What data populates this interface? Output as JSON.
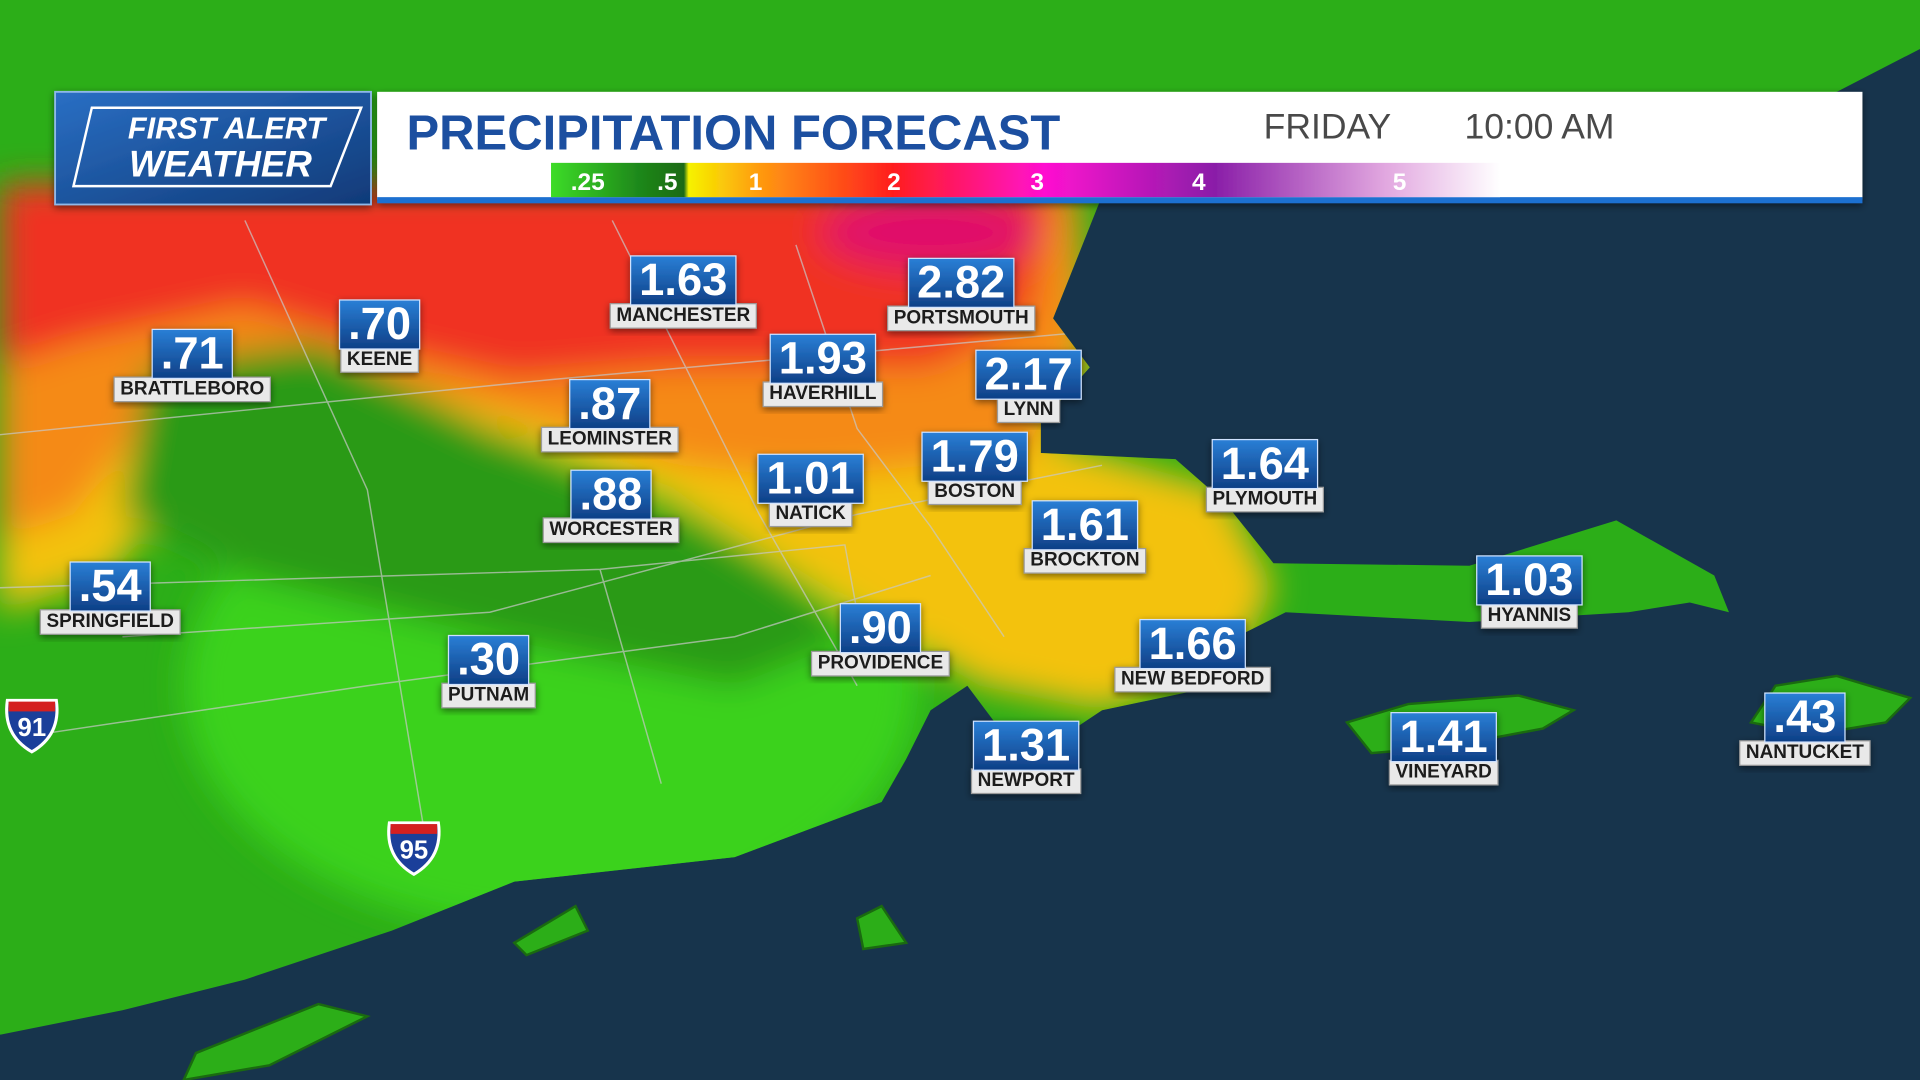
{
  "header": {
    "logo_line1": "FIRST ALERT",
    "logo_line2": "WEATHER",
    "title": "PRECIPITATION FORECAST",
    "day": "FRIDAY",
    "time": "10:00 AM"
  },
  "legend": {
    "labels": [
      ".25",
      ".5",
      "1",
      "2",
      "3",
      "4",
      "5"
    ]
  },
  "cities": [
    {
      "name": "MANCHESTER",
      "value": "1.63"
    },
    {
      "name": "PORTSMOUTH",
      "value": "2.82"
    },
    {
      "name": "KEENE",
      "value": ".70"
    },
    {
      "name": "BRATTLEBORO",
      "value": ".71"
    },
    {
      "name": "HAVERHILL",
      "value": "1.93"
    },
    {
      "name": "LYNN",
      "value": "2.17"
    },
    {
      "name": "LEOMINSTER",
      "value": ".87"
    },
    {
      "name": "BOSTON",
      "value": "1.79"
    },
    {
      "name": "NATICK",
      "value": "1.01"
    },
    {
      "name": "WORCESTER",
      "value": ".88"
    },
    {
      "name": "PLYMOUTH",
      "value": "1.64"
    },
    {
      "name": "BROCKTON",
      "value": "1.61"
    },
    {
      "name": "SPRINGFIELD",
      "value": ".54"
    },
    {
      "name": "HYANNIS",
      "value": "1.03"
    },
    {
      "name": "PROVIDENCE",
      "value": ".90"
    },
    {
      "name": "NEW BEDFORD",
      "value": "1.66"
    },
    {
      "name": "PUTNAM",
      "value": ".30"
    },
    {
      "name": "NEWPORT",
      "value": "1.31"
    },
    {
      "name": "VINEYARD",
      "value": "1.41"
    },
    {
      "name": "NANTUCKET",
      "value": ".43"
    }
  ],
  "highways": [
    "91",
    "95"
  ]
}
